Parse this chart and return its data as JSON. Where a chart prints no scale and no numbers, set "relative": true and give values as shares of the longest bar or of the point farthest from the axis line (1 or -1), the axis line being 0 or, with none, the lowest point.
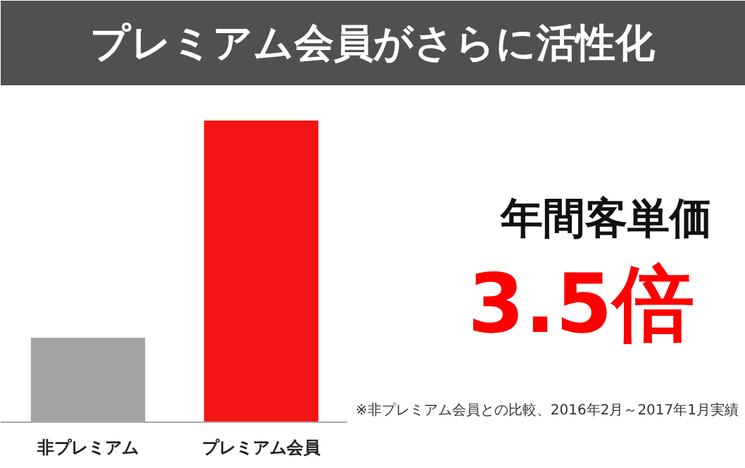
{
  "chart_data": {
    "type": "bar",
    "title": "プレミアム会員がさらに活性化",
    "categories": [
      "非プレミアム",
      "プレミアム会員"
    ],
    "values": [
      0.28,
      1
    ],
    "colors": [
      "#a3a3a3",
      "#f41414"
    ],
    "relative": true,
    "grid": false,
    "annotations": [
      "年間客単価",
      "3.5倍",
      "※非プレミアム会員との比較、2016年2月～2017年1月実績"
    ]
  }
}
